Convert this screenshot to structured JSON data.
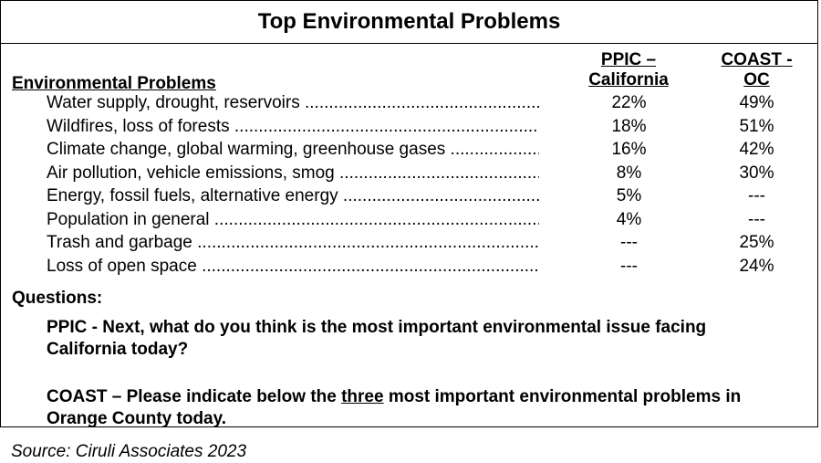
{
  "title": "Top Environmental Problems",
  "row_header": "Environmental Problems",
  "columns": [
    {
      "line1": "PPIC –",
      "line2": "California"
    },
    {
      "line1": "COAST -",
      "line2": "OC"
    }
  ],
  "chart_data": {
    "type": "table",
    "title": "Top Environmental Problems",
    "row_header": "Environmental Problems",
    "series": [
      {
        "name": "PPIC – California"
      },
      {
        "name": "COAST - OC"
      }
    ],
    "rows": [
      {
        "label": "Water supply, drought, reservoirs",
        "ppic": "22%",
        "coast": "49%"
      },
      {
        "label": "Wildfires, loss of forests",
        "ppic": "18%",
        "coast": "51%"
      },
      {
        "label": "Climate change, global warming, greenhouse gases",
        "ppic": "16%",
        "coast": "42%"
      },
      {
        "label": "Air pollution, vehicle emissions, smog",
        "ppic": "8%",
        "coast": "30%"
      },
      {
        "label": "Energy, fossil fuels, alternative energy",
        "ppic": "5%",
        "coast": "---"
      },
      {
        "label": "Population in general",
        "ppic": "4%",
        "coast": "---"
      },
      {
        "label": "Trash and garbage",
        "ppic": "---",
        "coast": "25%"
      },
      {
        "label": "Loss of open space",
        "ppic": "---",
        "coast": "24%"
      }
    ]
  },
  "questions": {
    "heading": "Questions:",
    "ppic": "PPIC - Next, what do you think is the most important environmental issue facing California today?",
    "coast_before": "COAST – Please indicate below the ",
    "coast_emph": "three",
    "coast_after": " most important environmental problems in Orange County today."
  },
  "source": "Source: Ciruli Associates 2023"
}
